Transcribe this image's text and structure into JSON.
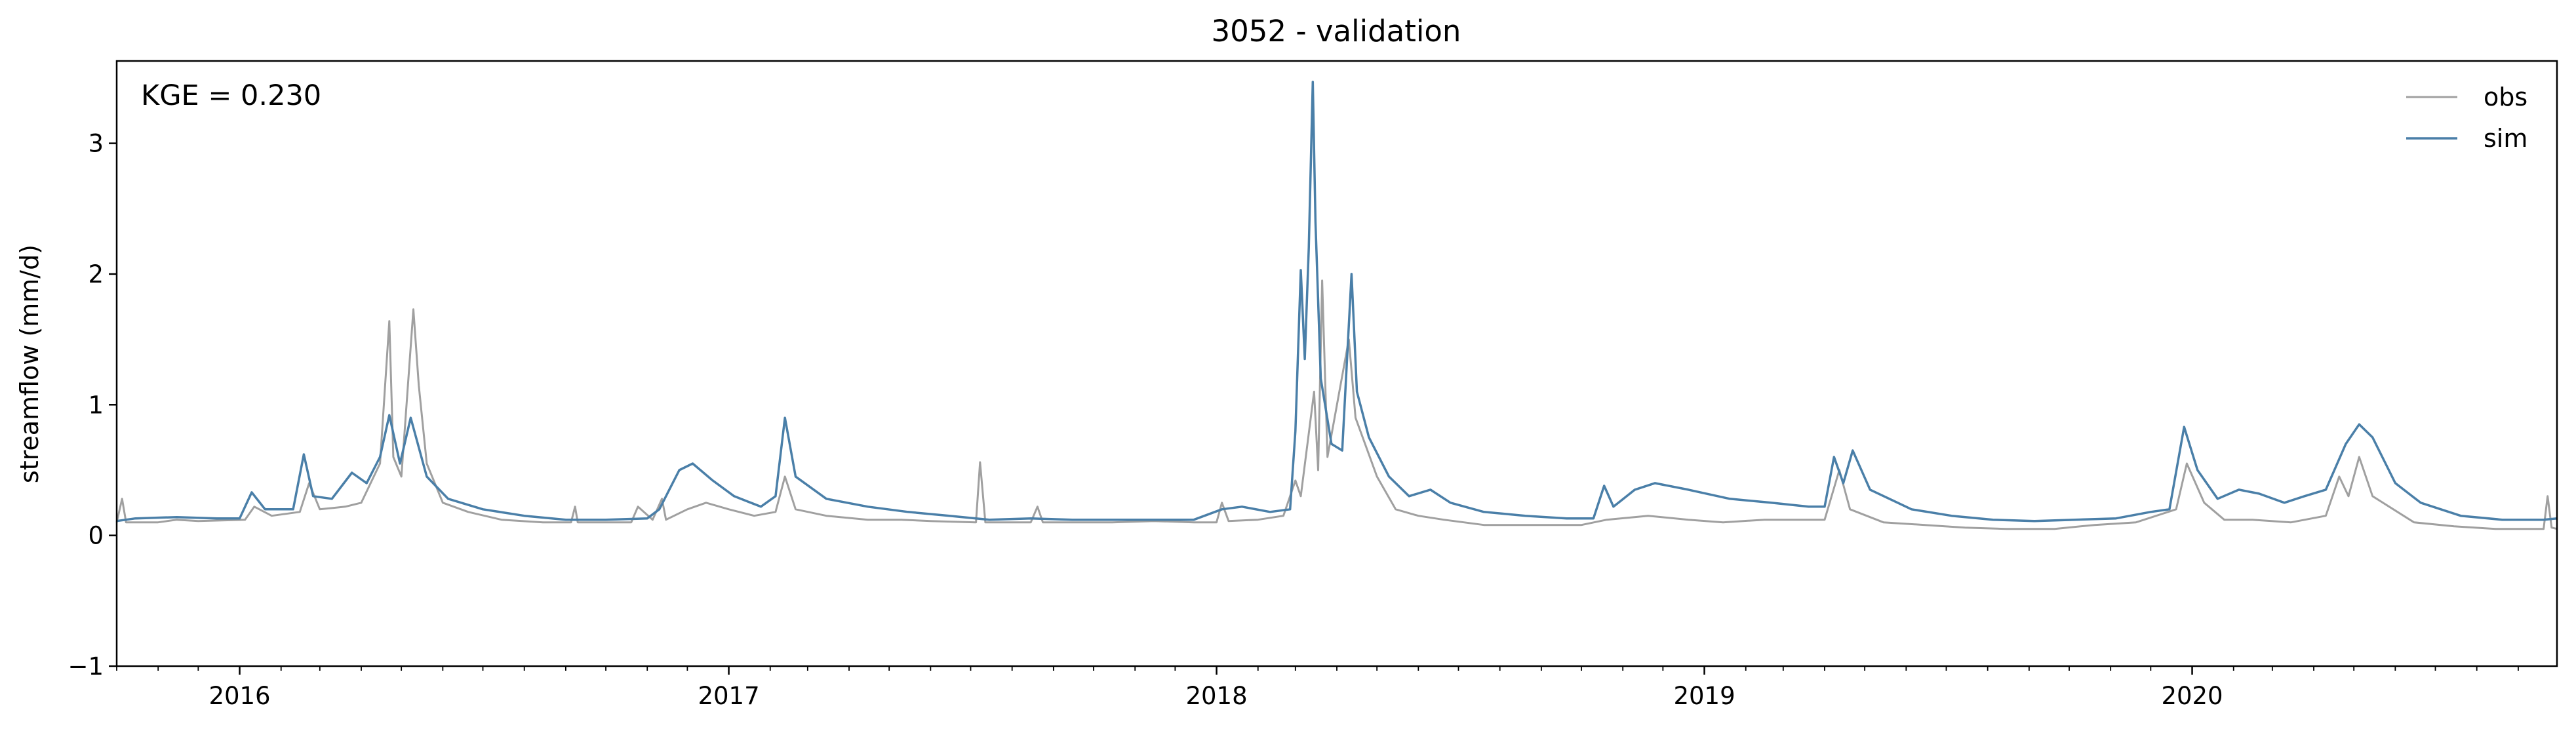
{
  "chart_data": {
    "type": "line",
    "title": "3052 - validation",
    "xlabel": "",
    "ylabel": "streamflow (mm/d)",
    "annotation": "KGE = 0.230",
    "x_start": "2015-10-01",
    "x_end": "2020-09-30",
    "xlim": [
      "2015-10-01",
      "2020-09-30"
    ],
    "ylim": [
      -1,
      3.63
    ],
    "y_ticks": [
      -1,
      0,
      1,
      2,
      3
    ],
    "x_ticks": [
      {
        "date": "2016-01-01",
        "label": "2016"
      },
      {
        "date": "2017-01-01",
        "label": "2017"
      },
      {
        "date": "2018-01-01",
        "label": "2018"
      },
      {
        "date": "2019-01-01",
        "label": "2019"
      },
      {
        "date": "2020-01-01",
        "label": "2020"
      }
    ],
    "grid": false,
    "legend_position": "top-right",
    "series": [
      {
        "name": "obs",
        "color": "#a0a0a0",
        "points": [
          [
            "2015-10-01",
            0.1
          ],
          [
            "2015-10-05",
            0.28
          ],
          [
            "2015-10-08",
            0.1
          ],
          [
            "2015-11-01",
            0.1
          ],
          [
            "2015-11-15",
            0.12
          ],
          [
            "2015-12-01",
            0.11
          ],
          [
            "2016-01-05",
            0.12
          ],
          [
            "2016-01-12",
            0.22
          ],
          [
            "2016-01-25",
            0.15
          ],
          [
            "2016-02-15",
            0.18
          ],
          [
            "2016-02-22",
            0.4
          ],
          [
            "2016-03-01",
            0.2
          ],
          [
            "2016-03-20",
            0.22
          ],
          [
            "2016-04-01",
            0.25
          ],
          [
            "2016-04-15",
            0.55
          ],
          [
            "2016-04-22",
            1.64
          ],
          [
            "2016-04-25",
            0.6
          ],
          [
            "2016-05-01",
            0.45
          ],
          [
            "2016-05-10",
            1.73
          ],
          [
            "2016-05-14",
            1.15
          ],
          [
            "2016-05-20",
            0.55
          ],
          [
            "2016-06-01",
            0.25
          ],
          [
            "2016-06-20",
            0.18
          ],
          [
            "2016-07-15",
            0.12
          ],
          [
            "2016-08-15",
            0.1
          ],
          [
            "2016-09-05",
            0.1
          ],
          [
            "2016-09-08",
            0.22
          ],
          [
            "2016-09-10",
            0.1
          ],
          [
            "2016-10-20",
            0.1
          ],
          [
            "2016-10-25",
            0.22
          ],
          [
            "2016-11-05",
            0.12
          ],
          [
            "2016-11-12",
            0.28
          ],
          [
            "2016-11-15",
            0.12
          ],
          [
            "2016-12-01",
            0.2
          ],
          [
            "2016-12-15",
            0.25
          ],
          [
            "2017-01-01",
            0.2
          ],
          [
            "2017-01-20",
            0.15
          ],
          [
            "2017-02-05",
            0.18
          ],
          [
            "2017-02-12",
            0.45
          ],
          [
            "2017-02-20",
            0.2
          ],
          [
            "2017-03-15",
            0.15
          ],
          [
            "2017-04-15",
            0.12
          ],
          [
            "2017-05-10",
            0.12
          ],
          [
            "2017-06-01",
            0.11
          ],
          [
            "2017-07-05",
            0.1
          ],
          [
            "2017-07-08",
            0.56
          ],
          [
            "2017-07-12",
            0.1
          ],
          [
            "2017-08-15",
            0.1
          ],
          [
            "2017-08-20",
            0.22
          ],
          [
            "2017-08-24",
            0.1
          ],
          [
            "2017-10-15",
            0.1
          ],
          [
            "2017-11-15",
            0.11
          ],
          [
            "2017-12-15",
            0.1
          ],
          [
            "2018-01-01",
            0.1
          ],
          [
            "2018-01-05",
            0.25
          ],
          [
            "2018-01-10",
            0.11
          ],
          [
            "2018-02-01",
            0.12
          ],
          [
            "2018-02-20",
            0.15
          ],
          [
            "2018-03-01",
            0.42
          ],
          [
            "2018-03-05",
            0.3
          ],
          [
            "2018-03-15",
            1.1
          ],
          [
            "2018-03-18",
            0.5
          ],
          [
            "2018-03-21",
            1.95
          ],
          [
            "2018-03-25",
            0.6
          ],
          [
            "2018-04-10",
            1.5
          ],
          [
            "2018-04-15",
            0.9
          ],
          [
            "2018-05-01",
            0.45
          ],
          [
            "2018-05-15",
            0.2
          ],
          [
            "2018-06-01",
            0.15
          ],
          [
            "2018-06-20",
            0.12
          ],
          [
            "2018-07-20",
            0.08
          ],
          [
            "2018-08-20",
            0.08
          ],
          [
            "2018-10-01",
            0.08
          ],
          [
            "2018-10-20",
            0.12
          ],
          [
            "2018-11-20",
            0.15
          ],
          [
            "2018-12-20",
            0.12
          ],
          [
            "2019-01-15",
            0.1
          ],
          [
            "2019-02-15",
            0.12
          ],
          [
            "2019-03-15",
            0.12
          ],
          [
            "2019-04-01",
            0.12
          ],
          [
            "2019-04-12",
            0.5
          ],
          [
            "2019-04-20",
            0.2
          ],
          [
            "2019-05-15",
            0.1
          ],
          [
            "2019-06-15",
            0.08
          ],
          [
            "2019-07-15",
            0.06
          ],
          [
            "2019-08-15",
            0.05
          ],
          [
            "2019-09-20",
            0.05
          ],
          [
            "2019-10-20",
            0.08
          ],
          [
            "2019-11-20",
            0.1
          ],
          [
            "2019-12-20",
            0.2
          ],
          [
            "2019-12-28",
            0.55
          ],
          [
            "2020-01-10",
            0.25
          ],
          [
            "2020-01-25",
            0.12
          ],
          [
            "2020-02-15",
            0.12
          ],
          [
            "2020-03-15",
            0.1
          ],
          [
            "2020-04-10",
            0.15
          ],
          [
            "2020-04-20",
            0.45
          ],
          [
            "2020-04-27",
            0.3
          ],
          [
            "2020-05-05",
            0.6
          ],
          [
            "2020-05-15",
            0.3
          ],
          [
            "2020-06-15",
            0.1
          ],
          [
            "2020-07-15",
            0.07
          ],
          [
            "2020-08-15",
            0.05
          ],
          [
            "2020-09-20",
            0.05
          ],
          [
            "2020-09-23",
            0.3
          ],
          [
            "2020-09-26",
            0.06
          ],
          [
            "2020-09-30",
            0.05
          ]
        ]
      },
      {
        "name": "sim",
        "color": "#4a7fa8",
        "points": [
          [
            "2015-10-01",
            0.11
          ],
          [
            "2015-10-15",
            0.13
          ],
          [
            "2015-11-15",
            0.14
          ],
          [
            "2015-12-15",
            0.13
          ],
          [
            "2016-01-01",
            0.13
          ],
          [
            "2016-01-10",
            0.33
          ],
          [
            "2016-01-20",
            0.2
          ],
          [
            "2016-02-10",
            0.2
          ],
          [
            "2016-02-18",
            0.62
          ],
          [
            "2016-02-25",
            0.3
          ],
          [
            "2016-03-10",
            0.28
          ],
          [
            "2016-03-25",
            0.48
          ],
          [
            "2016-04-05",
            0.4
          ],
          [
            "2016-04-15",
            0.6
          ],
          [
            "2016-04-22",
            0.92
          ],
          [
            "2016-04-30",
            0.55
          ],
          [
            "2016-05-08",
            0.9
          ],
          [
            "2016-05-20",
            0.45
          ],
          [
            "2016-06-05",
            0.28
          ],
          [
            "2016-07-01",
            0.2
          ],
          [
            "2016-08-01",
            0.15
          ],
          [
            "2016-09-01",
            0.12
          ],
          [
            "2016-10-01",
            0.12
          ],
          [
            "2016-11-01",
            0.13
          ],
          [
            "2016-11-10",
            0.2
          ],
          [
            "2016-11-25",
            0.5
          ],
          [
            "2016-12-05",
            0.55
          ],
          [
            "2016-12-20",
            0.42
          ],
          [
            "2017-01-05",
            0.3
          ],
          [
            "2017-01-25",
            0.22
          ],
          [
            "2017-02-05",
            0.3
          ],
          [
            "2017-02-12",
            0.9
          ],
          [
            "2017-02-20",
            0.45
          ],
          [
            "2017-03-15",
            0.28
          ],
          [
            "2017-04-15",
            0.22
          ],
          [
            "2017-05-15",
            0.18
          ],
          [
            "2017-06-15",
            0.15
          ],
          [
            "2017-07-15",
            0.12
          ],
          [
            "2017-08-15",
            0.13
          ],
          [
            "2017-09-15",
            0.12
          ],
          [
            "2017-10-15",
            0.12
          ],
          [
            "2017-11-15",
            0.12
          ],
          [
            "2017-12-15",
            0.12
          ],
          [
            "2018-01-05",
            0.2
          ],
          [
            "2018-01-20",
            0.22
          ],
          [
            "2018-02-10",
            0.18
          ],
          [
            "2018-02-25",
            0.2
          ],
          [
            "2018-03-01",
            0.8
          ],
          [
            "2018-03-05",
            2.03
          ],
          [
            "2018-03-08",
            1.35
          ],
          [
            "2018-03-11",
            2.2
          ],
          [
            "2018-03-14",
            3.47
          ],
          [
            "2018-03-16",
            2.4
          ],
          [
            "2018-03-20",
            1.2
          ],
          [
            "2018-03-28",
            0.7
          ],
          [
            "2018-04-05",
            0.65
          ],
          [
            "2018-04-12",
            2.0
          ],
          [
            "2018-04-16",
            1.1
          ],
          [
            "2018-04-25",
            0.75
          ],
          [
            "2018-05-10",
            0.45
          ],
          [
            "2018-05-25",
            0.3
          ],
          [
            "2018-06-10",
            0.35
          ],
          [
            "2018-06-25",
            0.25
          ],
          [
            "2018-07-20",
            0.18
          ],
          [
            "2018-08-20",
            0.15
          ],
          [
            "2018-09-20",
            0.13
          ],
          [
            "2018-10-10",
            0.13
          ],
          [
            "2018-10-18",
            0.38
          ],
          [
            "2018-10-25",
            0.22
          ],
          [
            "2018-11-10",
            0.35
          ],
          [
            "2018-11-25",
            0.4
          ],
          [
            "2018-12-20",
            0.35
          ],
          [
            "2019-01-20",
            0.28
          ],
          [
            "2019-02-20",
            0.25
          ],
          [
            "2019-03-20",
            0.22
          ],
          [
            "2019-04-01",
            0.22
          ],
          [
            "2019-04-08",
            0.6
          ],
          [
            "2019-04-15",
            0.4
          ],
          [
            "2019-04-22",
            0.65
          ],
          [
            "2019-05-05",
            0.35
          ],
          [
            "2019-06-05",
            0.2
          ],
          [
            "2019-07-05",
            0.15
          ],
          [
            "2019-08-05",
            0.12
          ],
          [
            "2019-09-05",
            0.11
          ],
          [
            "2019-10-05",
            0.12
          ],
          [
            "2019-11-05",
            0.13
          ],
          [
            "2019-12-01",
            0.18
          ],
          [
            "2019-12-15",
            0.2
          ],
          [
            "2019-12-26",
            0.83
          ],
          [
            "2020-01-05",
            0.5
          ],
          [
            "2020-01-20",
            0.28
          ],
          [
            "2020-02-05",
            0.35
          ],
          [
            "2020-02-20",
            0.32
          ],
          [
            "2020-03-10",
            0.25
          ],
          [
            "2020-03-25",
            0.3
          ],
          [
            "2020-04-10",
            0.35
          ],
          [
            "2020-04-25",
            0.7
          ],
          [
            "2020-05-05",
            0.85
          ],
          [
            "2020-05-15",
            0.75
          ],
          [
            "2020-06-01",
            0.4
          ],
          [
            "2020-06-20",
            0.25
          ],
          [
            "2020-07-20",
            0.15
          ],
          [
            "2020-08-20",
            0.12
          ],
          [
            "2020-09-20",
            0.12
          ],
          [
            "2020-09-30",
            0.13
          ]
        ]
      }
    ]
  }
}
